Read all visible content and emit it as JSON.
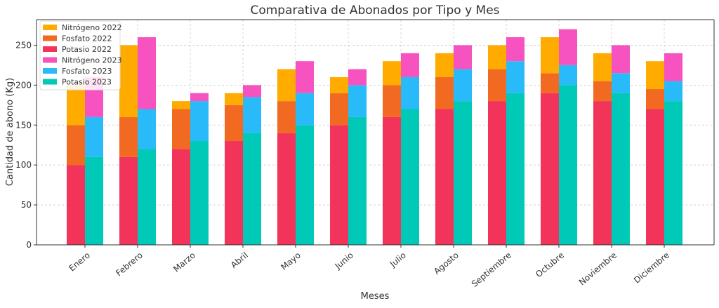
{
  "chart_data": {
    "type": "bar",
    "stacked": true,
    "title": "Comparativa de Abonados por Tipo y Mes",
    "xlabel": "Meses",
    "ylabel": "Cantidad de abono (Kg)",
    "ylim": [
      0,
      282
    ],
    "yticks": [
      0,
      50,
      100,
      150,
      200,
      250
    ],
    "grid": true,
    "legend_position": "top-left",
    "categories": [
      "Enero",
      "Febrero",
      "Marzo",
      "Abril",
      "Mayo",
      "Junio",
      "Julio",
      "Agosto",
      "Septiembre",
      "Octubre",
      "Noviembre",
      "Diciembre"
    ],
    "groups": [
      {
        "year": "2022",
        "series": [
          {
            "name": "Potasio 2022",
            "color": "#f2335a",
            "values": [
              100,
              110,
              120,
              130,
              140,
              150,
              160,
              170,
              180,
              190,
              180,
              170
            ]
          },
          {
            "name": "Fosfato 2022",
            "color": "#f26a22",
            "values": [
              50,
              50,
              50,
              45,
              40,
              40,
              40,
              40,
              40,
              25,
              25,
              25
            ]
          },
          {
            "name": "Nitrógeno 2022",
            "color": "#ffab00",
            "values": [
              50,
              90,
              10,
              15,
              40,
              20,
              30,
              30,
              30,
              45,
              35,
              35
            ]
          }
        ]
      },
      {
        "year": "2023",
        "series": [
          {
            "name": "Potasio 2023",
            "color": "#00c9b7",
            "values": [
              110,
              120,
              130,
              140,
              150,
              160,
              170,
              180,
              190,
              200,
              190,
              180
            ]
          },
          {
            "name": "Fosfato 2023",
            "color": "#29baf9",
            "values": [
              50,
              50,
              50,
              45,
              40,
              40,
              40,
              40,
              40,
              25,
              25,
              25
            ]
          },
          {
            "name": "Nitrógeno 2023",
            "color": "#f652c0",
            "values": [
              50,
              90,
              10,
              15,
              40,
              20,
              30,
              30,
              30,
              45,
              35,
              35
            ]
          }
        ]
      }
    ],
    "legend_order": [
      "Nitrógeno 2022",
      "Fosfato 2022",
      "Potasio 2022",
      "Nitrógeno 2023",
      "Fosfato 2023",
      "Potasio 2023"
    ]
  }
}
